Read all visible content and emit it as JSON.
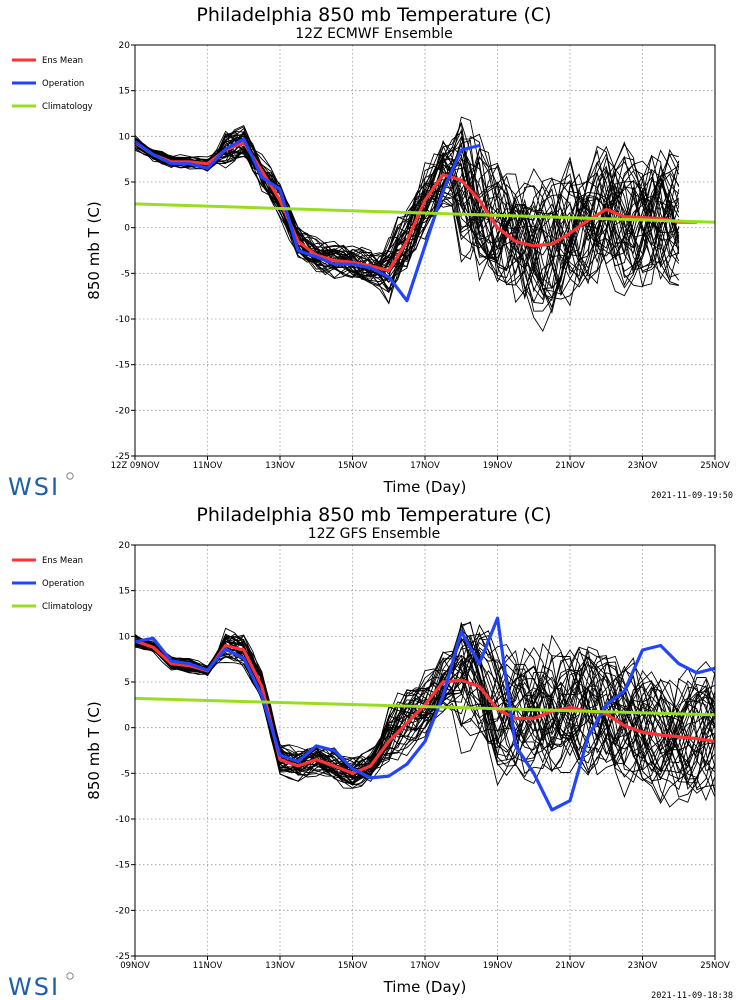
{
  "charts": [
    {
      "title": "Philadelphia 850 mb Temperature (C)",
      "subtitle": "12Z ECMWF Ensemble",
      "ylabel": "850 mb T (C)",
      "xlabel": "Time (Day)",
      "legend": [
        "Ens Mean",
        "Operation",
        "Climatology"
      ],
      "logo": "WSI",
      "timestamp": "2021-11-09-19:50",
      "yticks": [
        "20",
        "15",
        "10",
        "5",
        "0",
        "-5",
        "-10",
        "-15",
        "-20",
        "-25"
      ],
      "xticks": [
        "12Z 09NOV",
        "11NOV",
        "13NOV",
        "15NOV",
        "17NOV",
        "19NOV",
        "21NOV",
        "23NOV",
        "25NOV"
      ]
    },
    {
      "title": "Philadelphia 850 mb Temperature (C)",
      "subtitle": "12Z GFS Ensemble",
      "ylabel": "850 mb T (C)",
      "xlabel": "Time (Day)",
      "legend": [
        "Ens Mean",
        "Operation",
        "Climatology"
      ],
      "logo": "WSI",
      "timestamp": "2021-11-09-18:38",
      "yticks": [
        "20",
        "15",
        "10",
        "5",
        "0",
        "-5",
        "-10",
        "-15",
        "-20",
        "-25"
      ],
      "xticks": [
        "09NOV",
        "11NOV",
        "13NOV",
        "15NOV",
        "17NOV",
        "19NOV",
        "21NOV",
        "23NOV",
        "25NOV"
      ]
    }
  ],
  "chart_data": [
    {
      "type": "line",
      "title": "Philadelphia 850 mb Temperature (C)",
      "subtitle": "12Z ECMWF Ensemble",
      "xlabel": "Time (Day)",
      "ylabel": "850 mb T (C)",
      "xlim": [
        0,
        16
      ],
      "ylim": [
        -25,
        20
      ],
      "x_unit": "days after 12Z 09NOV",
      "grid": true,
      "legend_position": "left-outside",
      "colors": {
        "Ens Mean": "#ff3333",
        "Operation": "#2244ff",
        "Climatology": "#99dd22",
        "members": "#000000"
      },
      "series": [
        {
          "name": "Ens Mean",
          "x": [
            0,
            0.5,
            1,
            1.5,
            2,
            2.5,
            3,
            3.5,
            4,
            4.5,
            5,
            5.5,
            6,
            6.5,
            7,
            7.5,
            8,
            8.5,
            9,
            9.5,
            10,
            10.5,
            11,
            11.5,
            12,
            12.5,
            13,
            13.5,
            14,
            14.5,
            15,
            15.5
          ],
          "y": [
            9.3,
            8,
            7.2,
            7.2,
            7,
            8.5,
            9.3,
            6.2,
            3,
            -1.5,
            -3,
            -3.6,
            -3.8,
            -4.2,
            -4.7,
            -1.5,
            3,
            5.8,
            5.2,
            3,
            0,
            -1.5,
            -2,
            -1.8,
            -0.6,
            0.8,
            2,
            1.2,
            1.1,
            1,
            0.6,
            0.6
          ]
        },
        {
          "name": "Operation",
          "x": [
            0,
            0.5,
            1,
            1.5,
            2,
            2.5,
            3,
            3.5,
            4,
            4.5,
            5,
            5.5,
            6,
            6.5,
            7,
            7.5,
            8,
            8.5,
            9,
            9.5
          ],
          "y": [
            9.4,
            8,
            7,
            7,
            6.5,
            8.6,
            9.7,
            5.5,
            4.2,
            -2.5,
            -3.2,
            -4,
            -4,
            -4.4,
            -5.4,
            -8,
            -2,
            4,
            8.5,
            9
          ]
        },
        {
          "name": "Climatology",
          "x": [
            0,
            16
          ],
          "y": [
            2.6,
            0.6
          ]
        }
      ]
    },
    {
      "type": "line",
      "title": "Philadelphia 850 mb Temperature (C)",
      "subtitle": "12Z GFS Ensemble",
      "xlabel": "Time (Day)",
      "ylabel": "850 mb T (C)",
      "xlim": [
        0,
        16
      ],
      "ylim": [
        -25,
        20
      ],
      "x_unit": "days after 00Z 09NOV",
      "grid": true,
      "legend_position": "left-outside",
      "colors": {
        "Ens Mean": "#ff3333",
        "Operation": "#2244ff",
        "Climatology": "#99dd22",
        "members": "#000000"
      },
      "series": [
        {
          "name": "Ens Mean",
          "x": [
            0,
            0.5,
            1,
            1.5,
            2,
            2.5,
            3,
            3.5,
            4,
            4.5,
            5,
            5.5,
            6,
            6.5,
            7,
            7.5,
            8,
            8.5,
            9,
            9.5,
            10,
            10.5,
            11,
            11.5,
            12,
            12.5,
            13,
            13.5,
            14,
            14.5,
            15,
            15.5,
            16
          ],
          "y": [
            9.5,
            8.8,
            7,
            6.8,
            6.2,
            9,
            8.5,
            4.5,
            -3.5,
            -4.2,
            -3.5,
            -4.2,
            -5,
            -4.2,
            -1.5,
            0.5,
            2.5,
            5,
            5.2,
            4.5,
            2,
            1,
            1,
            1.8,
            2.2,
            1.8,
            1.5,
            0.2,
            -0.5,
            -0.8,
            -1,
            -1.2,
            -1.5
          ]
        },
        {
          "name": "Operation",
          "x": [
            0,
            0.5,
            1,
            1.5,
            2,
            2.5,
            3,
            3.5,
            4,
            4.5,
            5,
            5.5,
            6,
            6.5,
            7,
            7.5,
            8,
            8.5,
            9,
            9.5,
            10,
            10.5,
            11,
            11.5,
            12,
            12.5,
            13,
            13.5,
            14,
            14.5,
            15,
            15.5,
            16
          ],
          "y": [
            9.4,
            9.8,
            7.3,
            7,
            6.3,
            8.6,
            7.6,
            3.5,
            -3,
            -3.7,
            -2,
            -2.5,
            -4.5,
            -5.5,
            -5.3,
            -4,
            -1.5,
            3.5,
            10.5,
            7,
            12,
            -2,
            -5,
            -9,
            -8,
            -1,
            2.5,
            4,
            8.5,
            9,
            7,
            6,
            6.5
          ]
        },
        {
          "name": "Climatology",
          "x": [
            0,
            16
          ],
          "y": [
            3.2,
            1.4
          ]
        }
      ]
    }
  ]
}
